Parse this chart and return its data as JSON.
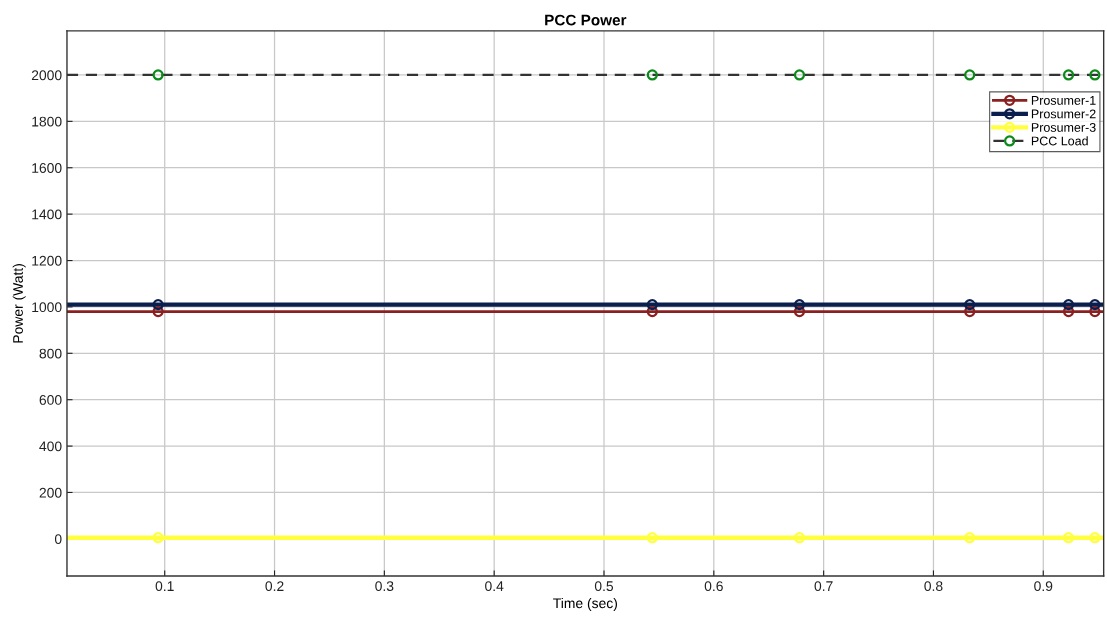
{
  "chart_data": {
    "type": "line",
    "title": "PCC Power",
    "xlabel": "Time (sec)",
    "ylabel": "Power (Watt)",
    "x": [
      0.011,
      0.094,
      0.544,
      0.678,
      0.833,
      0.923,
      0.947,
      0.955
    ],
    "series": [
      {
        "name": "Prosumer-1",
        "color": "#8b2020",
        "values": [
          980,
          980,
          980,
          980,
          980,
          980,
          980,
          980
        ]
      },
      {
        "name": "Prosumer-2",
        "color": "#0b1f4f",
        "values": [
          1010,
          1010,
          1010,
          1010,
          1010,
          1010,
          1010,
          1010
        ]
      },
      {
        "name": "Prosumer-3",
        "color": "#ffff40",
        "values": [
          5,
          5,
          5,
          5,
          5,
          5,
          5,
          5
        ]
      },
      {
        "name": "PCC Load",
        "color": "#333333",
        "colors": [
          "#0b8a1a",
          "#0b8a1a",
          "#0b8a1a",
          "#0b8a1a",
          "#0b8a1a",
          "#0b8a1a",
          "#0b8a1a",
          "#0b8a1a"
        ],
        "line_style": "dashed",
        "values": [
          2000,
          2000,
          2000,
          2000,
          2000,
          2000,
          2000,
          2000
        ]
      }
    ],
    "xlim": [
      0.011,
      0.955
    ],
    "ylim": [
      -160,
      2190
    ],
    "xticks": [
      0.1,
      0.2,
      0.3,
      0.4,
      0.5,
      0.6,
      0.7,
      0.8,
      0.9
    ],
    "yticks": [
      0,
      200,
      400,
      600,
      800,
      1000,
      1200,
      1400,
      1600,
      1800,
      2000
    ],
    "grid": true,
    "legend": "top right",
    "marker": "circle"
  }
}
